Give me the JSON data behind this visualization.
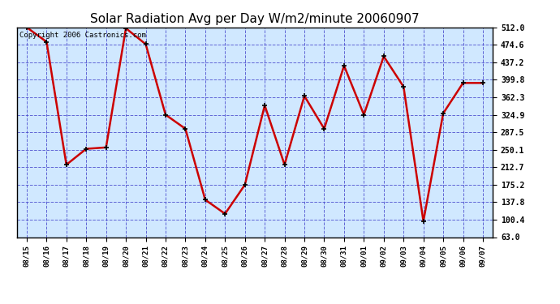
{
  "title": "Solar Radiation Avg per Day W/m2/minute 20060907",
  "copyright_text": "Copyright 2006 Castronics.com",
  "dates": [
    "08/15",
    "08/16",
    "08/17",
    "08/18",
    "08/19",
    "08/20",
    "08/21",
    "08/22",
    "08/23",
    "08/24",
    "08/25",
    "08/26",
    "08/27",
    "08/28",
    "08/29",
    "08/30",
    "08/31",
    "09/01",
    "09/02",
    "09/03",
    "09/04",
    "09/05",
    "09/06",
    "09/07"
  ],
  "values": [
    512.0,
    481.0,
    218.0,
    252.0,
    255.0,
    510.0,
    476.0,
    325.0,
    295.0,
    143.0,
    113.0,
    175.0,
    345.0,
    218.0,
    365.0,
    295.0,
    430.0,
    325.0,
    450.0,
    385.0,
    97.0,
    328.0,
    393.0,
    393.0
  ],
  "yticks": [
    63.0,
    100.4,
    137.8,
    175.2,
    212.7,
    250.1,
    287.5,
    324.9,
    362.3,
    399.8,
    437.2,
    474.6,
    512.0
  ],
  "line_color": "#cc0000",
  "marker_color": "#000000",
  "bg_color": "#d0e8ff",
  "grid_color": "#4444cc",
  "title_color": "#000000",
  "title_fontsize": 11,
  "copyright_fontsize": 6.5,
  "ylim": [
    63.0,
    512.0
  ],
  "fig_bg_color": "#ffffff",
  "axes_edge_color": "#000000"
}
